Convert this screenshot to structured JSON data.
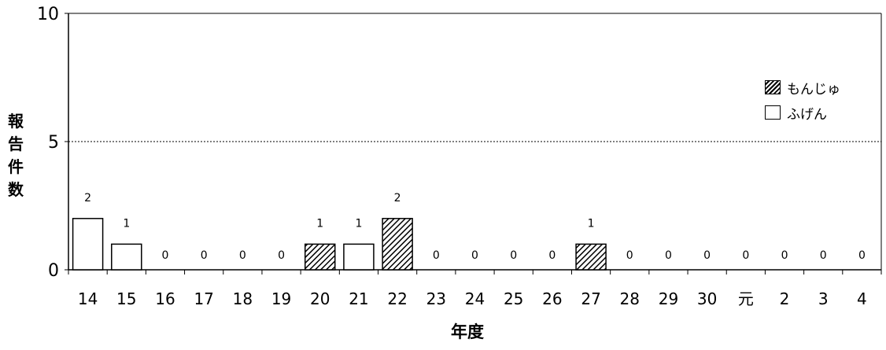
{
  "chart_data": {
    "type": "bar",
    "title": "",
    "xlabel": "年度",
    "ylabel": "報告件数",
    "ylim": [
      0,
      10
    ],
    "yticks": [
      "0",
      "5",
      "10"
    ],
    "categories": [
      "14",
      "15",
      "16",
      "17",
      "18",
      "19",
      "20",
      "21",
      "22",
      "23",
      "24",
      "25",
      "26",
      "27",
      "28",
      "29",
      "30",
      "元",
      "2",
      "3",
      "4"
    ],
    "series": [
      {
        "name": "もんじゅ",
        "pattern": "hatched",
        "values": [
          0,
          0,
          0,
          0,
          0,
          0,
          1,
          0,
          2,
          0,
          0,
          0,
          0,
          1,
          0,
          0,
          0,
          0,
          0,
          0,
          0
        ]
      },
      {
        "name": "ふげん",
        "pattern": "white",
        "values": [
          2,
          1,
          0,
          0,
          0,
          0,
          0,
          1,
          0,
          0,
          0,
          0,
          0,
          0,
          0,
          0,
          0,
          0,
          0,
          0,
          0
        ]
      }
    ],
    "totals": [
      2,
      1,
      0,
      0,
      0,
      0,
      1,
      1,
      2,
      0,
      0,
      0,
      0,
      1,
      0,
      0,
      0,
      0,
      0,
      0,
      0
    ],
    "grid": "dotted line at 5",
    "legend_position": "right"
  },
  "legend": {
    "monju": "もんじゅ",
    "fugen": "ふげん"
  },
  "axis": {
    "ylabel_chars": [
      "報",
      "告",
      "件",
      "数"
    ],
    "xlabel": "年度"
  }
}
